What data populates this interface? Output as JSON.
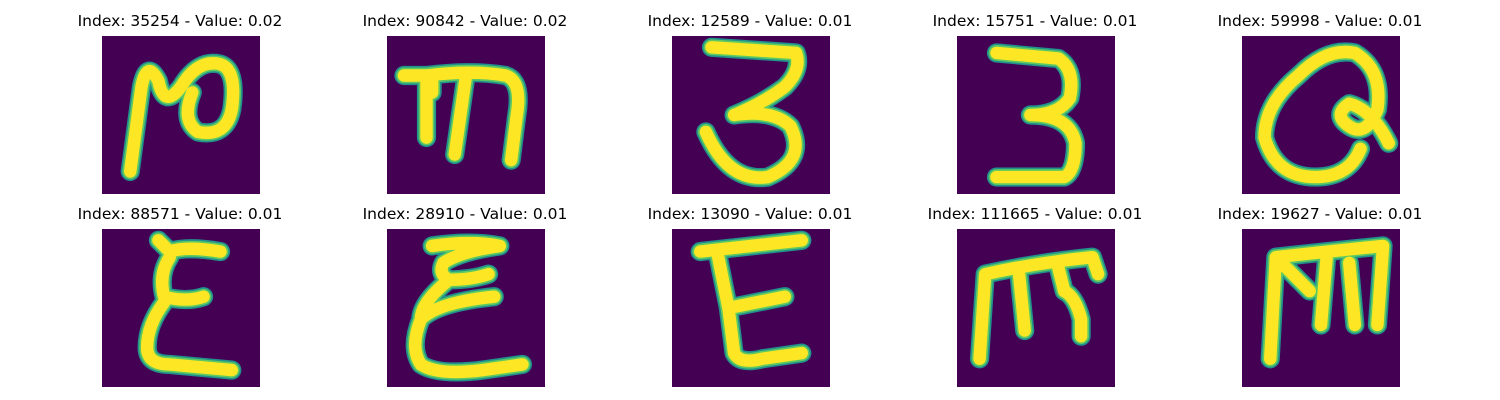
{
  "panels": [
    {
      "title": "Index: 35254 - Value: 0.02",
      "glyph": "glyph-1"
    },
    {
      "title": "Index: 90842 - Value: 0.02",
      "glyph": "glyph-2"
    },
    {
      "title": "Index: 12589 - Value: 0.01",
      "glyph": "glyph-3"
    },
    {
      "title": "Index: 15751 - Value: 0.01",
      "glyph": "glyph-4"
    },
    {
      "title": "Index: 59998 - Value: 0.01",
      "glyph": "glyph-5"
    },
    {
      "title": "Index: 88571 - Value: 0.01",
      "glyph": "glyph-6"
    },
    {
      "title": "Index: 28910 - Value: 0.01",
      "glyph": "glyph-7"
    },
    {
      "title": "Index: 13090 - Value: 0.01",
      "glyph": "glyph-8"
    },
    {
      "title": "Index: 111665 - Value: 0.01",
      "glyph": "glyph-9"
    },
    {
      "title": "Index: 19627 - Value: 0.01",
      "glyph": "glyph-10"
    }
  ],
  "colors": {
    "background": "#440154",
    "stroke_core": "#fde725",
    "stroke_mid": "#5ec962",
    "stroke_edge": "#21918c"
  }
}
